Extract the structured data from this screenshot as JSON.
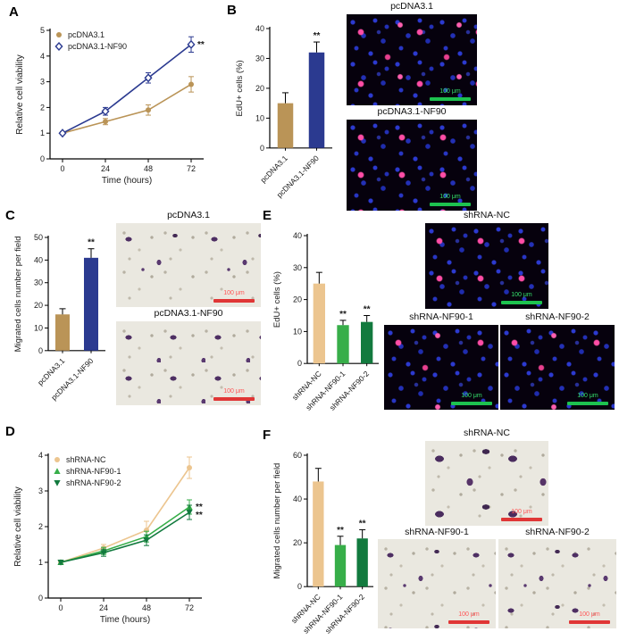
{
  "panel_labels": {
    "A": "A",
    "B": "B",
    "C": "C",
    "D": "D",
    "E": "E",
    "F": "F"
  },
  "image_titles": {
    "B1": "pcDNA3.1",
    "B2": "pcDNA3.1-NF90",
    "C1": "pcDNA3.1",
    "C2": "pcDNA3.1-NF90",
    "E1": "shRNA-NC",
    "E2": "shRNA-NF90-1",
    "E3": "shRNA-NF90-2",
    "F1": "shRNA-NC",
    "F2": "shRNA-NF90-1",
    "F3": "shRNA-NF90-2"
  },
  "scale_bar_label": "100 μm",
  "colors": {
    "tan": "#BA9457",
    "navy": "#2B3A90",
    "light_tan": "#ECC58F",
    "green": "#37AE49",
    "dark_green": "#127A3E",
    "scale_bar_green": "#1DC24F",
    "scale_bar_red": "#E03636"
  },
  "chart_data": [
    {
      "id": "A",
      "type": "line",
      "xlabel": "Time (hours)",
      "ylabel": "Relative cell viability",
      "x": [
        0,
        24,
        48,
        72
      ],
      "ylim": [
        0,
        5
      ],
      "yticks": [
        0,
        1,
        2,
        3,
        4,
        5
      ],
      "legend_position": "top-left",
      "series": [
        {
          "name": "pcDNA3.1",
          "color": "#BA9457",
          "marker": "circle",
          "values": [
            1.0,
            1.45,
            1.9,
            2.9
          ],
          "errors": [
            0.05,
            0.12,
            0.2,
            0.3
          ]
        },
        {
          "name": "pcDNA3.1-NF90",
          "color": "#2B3A90",
          "marker": "diamond",
          "values": [
            1.0,
            1.85,
            3.15,
            4.45
          ],
          "errors": [
            0.05,
            0.15,
            0.2,
            0.3
          ],
          "sig": "**"
        }
      ]
    },
    {
      "id": "B",
      "type": "bar",
      "ylabel": "EdU+ cells (%)",
      "ylim": [
        0,
        40
      ],
      "yticks": [
        0,
        10,
        20,
        30,
        40
      ],
      "categories": [
        "pcDNA3.1",
        "pcDNA3.1-NF90"
      ],
      "values": [
        15,
        32
      ],
      "errors": [
        3.5,
        3.5
      ],
      "colors": [
        "#BA9457",
        "#2B3A90"
      ],
      "sig": [
        "",
        "**"
      ]
    },
    {
      "id": "C",
      "type": "bar",
      "ylabel": "Migrated cells number per field",
      "ylim": [
        0,
        50
      ],
      "yticks": [
        0,
        10,
        20,
        30,
        40,
        50
      ],
      "categories": [
        "pcDNA3.1",
        "pcDNA3.1-NF90"
      ],
      "values": [
        16,
        41
      ],
      "errors": [
        2.5,
        4
      ],
      "colors": [
        "#BA9457",
        "#2B3A90"
      ],
      "sig": [
        "",
        "**"
      ]
    },
    {
      "id": "D",
      "type": "line",
      "xlabel": "Time (hours)",
      "ylabel": "Relative cell viability",
      "x": [
        0,
        24,
        48,
        72
      ],
      "ylim": [
        0,
        4
      ],
      "yticks": [
        0,
        1,
        2,
        3,
        4
      ],
      "legend_position": "top-left",
      "series": [
        {
          "name": "shRNA-NC",
          "color": "#ECC58F",
          "marker": "circle",
          "values": [
            1.0,
            1.4,
            1.9,
            3.65
          ],
          "errors": [
            0.05,
            0.1,
            0.25,
            0.3
          ]
        },
        {
          "name": "shRNA-NF90-1",
          "color": "#37AE49",
          "marker": "triangle",
          "values": [
            1.0,
            1.32,
            1.72,
            2.55
          ],
          "errors": [
            0.05,
            0.1,
            0.15,
            0.2
          ],
          "sig": "**"
        },
        {
          "name": "shRNA-NF90-2",
          "color": "#127A3E",
          "marker": "triangle-down",
          "values": [
            1.0,
            1.27,
            1.62,
            2.4
          ],
          "errors": [
            0.05,
            0.1,
            0.15,
            0.2
          ],
          "sig": "**"
        }
      ]
    },
    {
      "id": "E",
      "type": "bar",
      "ylabel": "EdU+ cells (%)",
      "ylim": [
        0,
        40
      ],
      "yticks": [
        0,
        10,
        20,
        30,
        40
      ],
      "categories": [
        "shRNA-NC",
        "shRNA-NF90-1",
        "shRNA-NF90-2"
      ],
      "values": [
        25,
        12,
        13
      ],
      "errors": [
        3.5,
        1.5,
        2
      ],
      "colors": [
        "#ECC58F",
        "#37AE49",
        "#127A3E"
      ],
      "sig": [
        "",
        "**",
        "**"
      ]
    },
    {
      "id": "F",
      "type": "bar",
      "ylabel": "Migrated cells number per field",
      "ylim": [
        0,
        60
      ],
      "yticks": [
        0,
        20,
        40,
        60
      ],
      "categories": [
        "shRNA-NC",
        "shRNA-NF90-1",
        "shRNA-NF90-2"
      ],
      "values": [
        48,
        19,
        22
      ],
      "errors": [
        6,
        4,
        4
      ],
      "colors": [
        "#ECC58F",
        "#37AE49",
        "#127A3E"
      ],
      "sig": [
        "",
        "**",
        "**"
      ]
    }
  ]
}
